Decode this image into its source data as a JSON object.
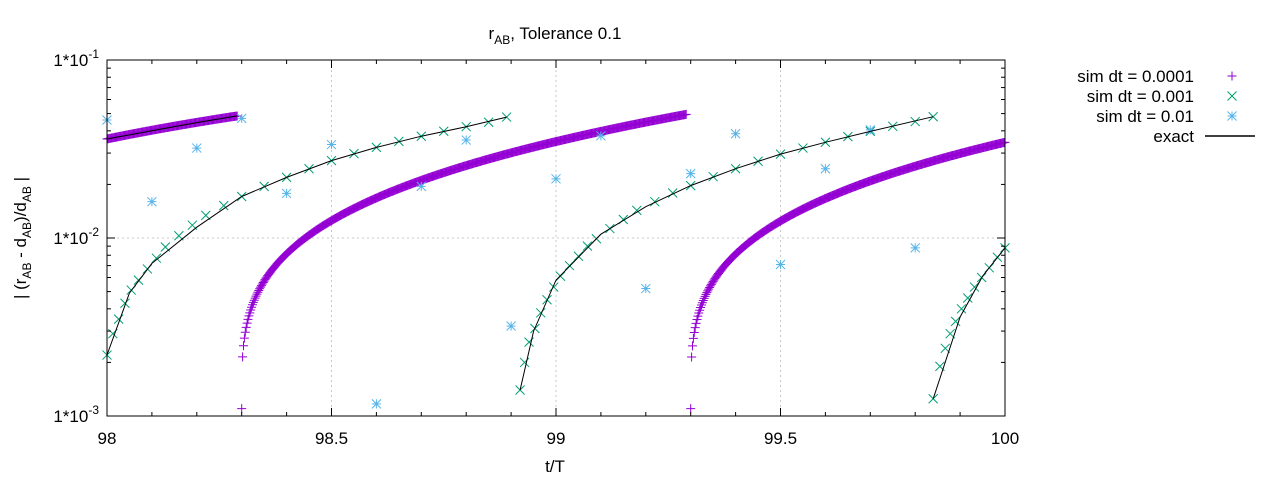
{
  "chart_data": {
    "type": "scatter",
    "title": {
      "main": "r",
      "sub": "AB",
      "rest": ", Tolerance 0.1"
    },
    "xlabel": "t/T",
    "ylabel": {
      "p1": "| (r",
      "s1": "AB",
      "p2": " - d",
      "s2": "AB",
      "p3": ")/d",
      "s3": "AB",
      "p4": " |"
    },
    "x_range": [
      98,
      100
    ],
    "y_range": [
      0.001,
      0.1
    ],
    "y_scale": "log",
    "grid": true,
    "legend_position": "outside-right",
    "x_ticks": [
      {
        "value": 98,
        "label": "98"
      },
      {
        "value": 98.5,
        "label": "98.5"
      },
      {
        "value": 99,
        "label": "99"
      },
      {
        "value": 99.5,
        "label": "99.5"
      },
      {
        "value": 100,
        "label": "100"
      }
    ],
    "y_ticks": [
      {
        "value": 0.001,
        "base": "1*10",
        "exp": "-3"
      },
      {
        "value": 0.01,
        "base": "1*10",
        "exp": "-2"
      },
      {
        "value": 0.1,
        "base": "1*10",
        "exp": "-1"
      }
    ],
    "series": [
      {
        "name": "sim dt = 0.0001",
        "marker": "plus",
        "color": "#9400d3",
        "dt": 0.0001,
        "period": 1,
        "segments": [
          {
            "x_start": 98.0,
            "x_end": 98.29,
            "y_start": 0.036,
            "y_end": 0.0485
          },
          {
            "x_start": 98.3,
            "x_end": 99.29,
            "y_start": 0.0011,
            "y_end": 0.0495
          },
          {
            "x_start": 99.3,
            "x_end": 100.0,
            "y_start": 0.0011,
            "y_end": 0.0345
          }
        ]
      },
      {
        "name": "sim dt = 0.001",
        "marker": "cross",
        "color": "#009e73",
        "dt": 0.001,
        "points": [
          [
            98.0,
            0.0022
          ],
          [
            98.013,
            0.0029
          ],
          [
            98.026,
            0.0035
          ],
          [
            98.04,
            0.0043
          ],
          [
            98.054,
            0.0051
          ],
          [
            98.07,
            0.0058
          ],
          [
            98.09,
            0.0067
          ],
          [
            98.11,
            0.0077
          ],
          [
            98.13,
            0.0089
          ],
          [
            98.16,
            0.0103
          ],
          [
            98.19,
            0.0118
          ],
          [
            98.22,
            0.0134
          ],
          [
            98.26,
            0.0152
          ],
          [
            98.3,
            0.0171
          ],
          [
            98.35,
            0.0195
          ],
          [
            98.4,
            0.0219
          ],
          [
            98.45,
            0.0245
          ],
          [
            98.5,
            0.0272
          ],
          [
            98.55,
            0.0298
          ],
          [
            98.6,
            0.0323
          ],
          [
            98.65,
            0.0349
          ],
          [
            98.7,
            0.0373
          ],
          [
            98.75,
            0.0398
          ],
          [
            98.8,
            0.0422
          ],
          [
            98.85,
            0.0447
          ],
          [
            98.89,
            0.0478
          ],
          [
            98.92,
            0.0014
          ],
          [
            98.93,
            0.002
          ],
          [
            98.94,
            0.0026
          ],
          [
            98.953,
            0.0031
          ],
          [
            98.966,
            0.0038
          ],
          [
            98.98,
            0.0045
          ],
          [
            98.995,
            0.0053
          ],
          [
            99.01,
            0.0061
          ],
          [
            99.03,
            0.007
          ],
          [
            99.05,
            0.0079
          ],
          [
            99.07,
            0.009
          ],
          [
            99.09,
            0.0099
          ],
          [
            99.12,
            0.0113
          ],
          [
            99.15,
            0.0127
          ],
          [
            99.18,
            0.0143
          ],
          [
            99.22,
            0.016
          ],
          [
            99.26,
            0.0179
          ],
          [
            99.3,
            0.0197
          ],
          [
            99.35,
            0.0221
          ],
          [
            99.4,
            0.0245
          ],
          [
            99.45,
            0.027
          ],
          [
            99.5,
            0.0296
          ],
          [
            99.55,
            0.032
          ],
          [
            99.6,
            0.0345
          ],
          [
            99.65,
            0.0371
          ],
          [
            99.7,
            0.0397
          ],
          [
            99.75,
            0.0424
          ],
          [
            99.8,
            0.0451
          ],
          [
            99.84,
            0.048
          ],
          [
            99.84,
            0.00125
          ],
          [
            99.855,
            0.0019
          ],
          [
            99.867,
            0.0024
          ],
          [
            99.878,
            0.0029
          ],
          [
            99.89,
            0.0034
          ],
          [
            99.903,
            0.004
          ],
          [
            99.917,
            0.0046
          ],
          [
            99.932,
            0.0053
          ],
          [
            99.948,
            0.006
          ],
          [
            99.965,
            0.0068
          ],
          [
            99.983,
            0.0078
          ],
          [
            100.0,
            0.0088
          ]
        ]
      },
      {
        "name": "sim dt = 0.01",
        "marker": "star",
        "color": "#56b4e9",
        "dt": 0.01,
        "points": [
          [
            98.0,
            0.046
          ],
          [
            98.1,
            0.016
          ],
          [
            98.2,
            0.032
          ],
          [
            98.3,
            0.047
          ],
          [
            98.4,
            0.0178
          ],
          [
            98.5,
            0.0335
          ],
          [
            98.6,
            0.00117
          ],
          [
            98.7,
            0.0195
          ],
          [
            98.8,
            0.0355
          ],
          [
            98.9,
            0.0032
          ],
          [
            99.0,
            0.0215
          ],
          [
            99.1,
            0.0375
          ],
          [
            99.2,
            0.0052
          ],
          [
            99.3,
            0.023
          ],
          [
            99.4,
            0.0385
          ],
          [
            99.5,
            0.0071
          ],
          [
            99.6,
            0.0245
          ],
          [
            99.7,
            0.0405
          ],
          [
            99.8,
            0.0088
          ]
        ]
      },
      {
        "name": "exact",
        "marker": "line",
        "color": "#000000",
        "curves": [
          [
            [
              98.0,
              0.036
            ],
            [
              98.1,
              0.04
            ],
            [
              98.2,
              0.0445
            ],
            [
              98.29,
              0.0485
            ]
          ],
          [
            [
              98.0,
              0.0022
            ],
            [
              98.05,
              0.0049
            ],
            [
              98.1,
              0.0072
            ],
            [
              98.2,
              0.0115
            ],
            [
              98.3,
              0.0171
            ],
            [
              98.4,
              0.0219
            ],
            [
              98.5,
              0.0272
            ],
            [
              98.6,
              0.0323
            ],
            [
              98.7,
              0.0373
            ],
            [
              98.8,
              0.0422
            ],
            [
              98.89,
              0.0478
            ]
          ],
          [
            [
              98.92,
              0.0014
            ],
            [
              98.95,
              0.003
            ],
            [
              99.0,
              0.0058
            ],
            [
              99.1,
              0.0105
            ],
            [
              99.2,
              0.015
            ],
            [
              99.3,
              0.0197
            ],
            [
              99.4,
              0.0245
            ],
            [
              99.5,
              0.0296
            ],
            [
              99.6,
              0.0345
            ],
            [
              99.7,
              0.0397
            ],
            [
              99.84,
              0.048
            ]
          ],
          [
            [
              99.84,
              0.00125
            ],
            [
              99.9,
              0.0036
            ],
            [
              99.95,
              0.0061
            ],
            [
              100.0,
              0.0088
            ]
          ]
        ]
      }
    ]
  }
}
